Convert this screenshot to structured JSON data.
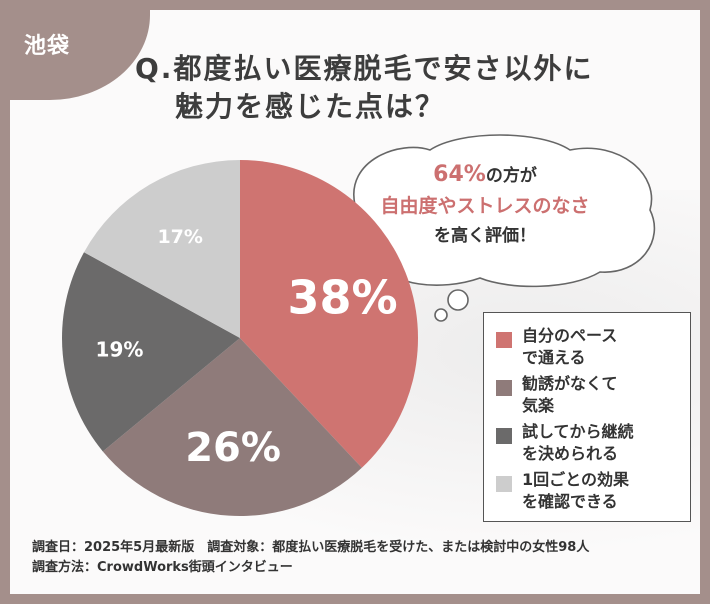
{
  "corner_label": "池袋",
  "title": {
    "line1": "Q.都度払い医療脱毛で安さ以外に",
    "line2": "魅力を感じた点は？"
  },
  "callout": {
    "percent": "64%",
    "line1_rest": "の方が",
    "line2": "自由度やストレスのなさ",
    "line3": "を高く評価！"
  },
  "chart_data": {
    "type": "pie",
    "categories": [
      "自分のペースで通える",
      "勧誘がなくて気楽",
      "試してから継続を決められる",
      "1回ごとの効果を確認できる"
    ],
    "values": [
      38,
      26,
      19,
      17
    ],
    "data_labels": [
      "38%",
      "26%",
      "19%",
      "17%"
    ],
    "colors": [
      "#cf7471",
      "#8f7b7a",
      "#6b6a6a",
      "#cdcdcd"
    ],
    "label_colors": [
      "#ffffff",
      "#ffffff",
      "#ffffff",
      "#ffffff"
    ],
    "start_angle_deg": 0,
    "direction": "clockwise",
    "legend_placement": "bottom-right"
  },
  "legend": [
    {
      "line1": "自分のペース",
      "line2": "で通える"
    },
    {
      "line1": "勧誘がなくて",
      "line2": "気楽"
    },
    {
      "line1": "試してから継続",
      "line2": "を決められる"
    },
    {
      "line1": "1回ごとの効果",
      "line2": "を確認できる"
    }
  ],
  "footer": {
    "line1": "調査日：2025年5月最新版　調査対象：都度払い医療脱毛を受けた、または検討中の女性98人",
    "line2": "調査方法：CrowdWorks街頭インタビュー"
  }
}
